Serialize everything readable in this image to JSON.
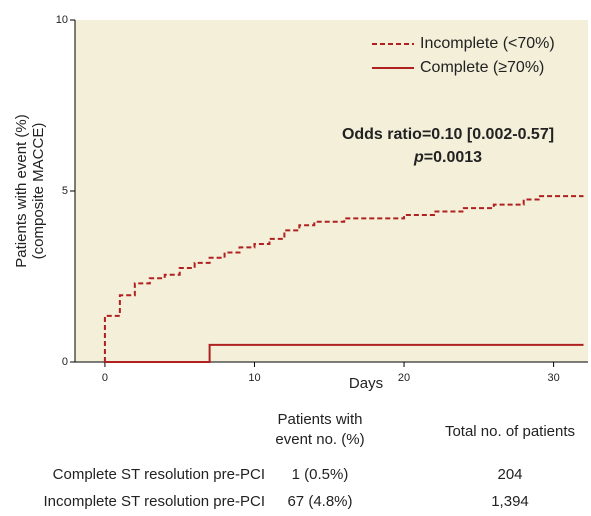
{
  "chart_data": {
    "type": "step",
    "xlabel": "Days",
    "ylabel": [
      "Patients with event (%)",
      "(composite MACCE)"
    ],
    "xlim": [
      -2,
      32.3
    ],
    "xticks": [
      0,
      10,
      20,
      30
    ],
    "ylim": [
      0,
      10
    ],
    "yticks": [
      0,
      5,
      10
    ],
    "background": "#f3efd9",
    "legend": "top-right",
    "annotation": {
      "line1": "Odds ratio=0.10 [0.002-0.57]",
      "p_symbol": "p",
      "p_value": "=0.0013"
    },
    "series": [
      {
        "name": "Incomplete (<70%)",
        "color": "#b02020",
        "dashed": true,
        "x": [
          0,
          0,
          1,
          2,
          3,
          4,
          5,
          6,
          7,
          8,
          9,
          10,
          11,
          12,
          13,
          14,
          16,
          20,
          22,
          24,
          26,
          28,
          29,
          32
        ],
        "values": [
          0,
          1.35,
          1.95,
          2.3,
          2.45,
          2.55,
          2.75,
          2.9,
          3.05,
          3.2,
          3.35,
          3.45,
          3.6,
          3.85,
          4.0,
          4.1,
          4.2,
          4.3,
          4.4,
          4.5,
          4.6,
          4.75,
          4.85,
          4.85
        ]
      },
      {
        "name": "Complete (≥70%)",
        "color": "#b02020",
        "dashed": false,
        "x": [
          0,
          7,
          32
        ],
        "values": [
          0,
          0.5,
          0.5
        ]
      }
    ]
  },
  "table": {
    "header": [
      [
        "Patients with",
        "event no. (%)"
      ],
      "Total no. of patients"
    ],
    "rows": [
      [
        "Complete ST resolution pre-PCI",
        "1 (0.5%)",
        "204"
      ],
      [
        "Incomplete ST resolution pre-PCI",
        "67 (4.8%)",
        "1,394"
      ]
    ]
  }
}
